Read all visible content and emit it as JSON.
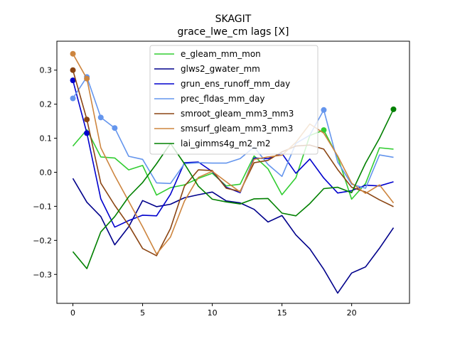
{
  "chart_data": {
    "type": "line",
    "title": "SKAGIT",
    "subtitle": "grace_lwe_cm lags [X]",
    "xlabel": "",
    "ylabel": "",
    "xlim": [
      -1.15,
      24.15
    ],
    "ylim": [
      -0.385,
      0.385
    ],
    "xticks": [
      0,
      5,
      10,
      15,
      20
    ],
    "yticks": [
      -0.3,
      -0.2,
      -0.1,
      0.0,
      0.1,
      0.2,
      0.3
    ],
    "ytick_labels": [
      "−0.3",
      "−0.2",
      "−0.1",
      "0.0",
      "0.1",
      "0.2",
      "0.3"
    ],
    "legend_position": "upper center",
    "x": [
      0,
      1,
      2,
      3,
      4,
      5,
      6,
      7,
      8,
      9,
      10,
      11,
      12,
      13,
      14,
      15,
      16,
      17,
      18,
      19,
      20,
      21,
      22,
      23
    ],
    "series": [
      {
        "name": "e_gleam_mm_mon",
        "color": "#32cd32",
        "values": [
          0.077,
          0.125,
          0.045,
          0.042,
          0.007,
          0.02,
          -0.067,
          -0.045,
          -0.037,
          -0.018,
          -0.003,
          -0.04,
          -0.035,
          0.048,
          0.01,
          -0.066,
          -0.016,
          0.108,
          0.124,
          0.045,
          -0.079,
          -0.033,
          0.072,
          0.068
        ],
        "markers": [
          18
        ]
      },
      {
        "name": "glws2_gwater_mm",
        "color": "#00008b",
        "values": [
          -0.018,
          -0.088,
          -0.13,
          -0.213,
          -0.16,
          -0.083,
          -0.101,
          -0.094,
          -0.075,
          -0.066,
          -0.058,
          -0.084,
          -0.09,
          -0.109,
          -0.146,
          -0.127,
          -0.184,
          -0.225,
          -0.285,
          -0.355,
          -0.296,
          -0.278,
          -0.223,
          -0.163
        ],
        "markers": []
      },
      {
        "name": "grun_ens_runoff_mm_day",
        "color": "#0000cd",
        "values": [
          0.27,
          0.115,
          -0.078,
          -0.161,
          -0.142,
          -0.126,
          -0.128,
          -0.065,
          0.028,
          0.03,
          0.002,
          -0.044,
          -0.06,
          0.042,
          0.04,
          0.055,
          -0.003,
          0.039,
          -0.017,
          -0.061,
          -0.054,
          -0.038,
          -0.04,
          -0.028
        ],
        "markers": [
          0,
          1
        ]
      },
      {
        "name": "prec_fldas_mm_day",
        "color": "#6495ed",
        "values": [
          0.217,
          0.28,
          0.161,
          0.13,
          0.047,
          0.038,
          -0.031,
          -0.033,
          0.025,
          0.028,
          0.027,
          0.027,
          0.04,
          0.074,
          0.023,
          -0.012,
          0.085,
          0.109,
          0.183,
          0.03,
          -0.035,
          -0.047,
          0.051,
          0.044
        ],
        "markers": [
          0,
          1,
          2,
          3,
          18
        ]
      },
      {
        "name": "smroot_gleam_mm3_mm3",
        "color": "#8b4513",
        "values": [
          0.3,
          0.155,
          -0.032,
          -0.097,
          -0.155,
          -0.224,
          -0.245,
          -0.165,
          -0.041,
          0.007,
          0.005,
          -0.047,
          -0.056,
          0.028,
          0.035,
          0.06,
          0.077,
          0.08,
          0.068,
          0.008,
          -0.044,
          -0.058,
          -0.081,
          -0.101
        ],
        "markers": [
          0,
          1
        ]
      },
      {
        "name": "smsurf_gleam_mm3_mm3",
        "color": "#cd853f",
        "values": [
          0.348,
          0.275,
          0.072,
          -0.01,
          -0.085,
          -0.16,
          -0.24,
          -0.19,
          -0.085,
          -0.015,
          0.003,
          -0.028,
          -0.058,
          0.038,
          0.045,
          0.05,
          0.088,
          0.142,
          0.115,
          0.048,
          -0.032,
          -0.062,
          -0.037,
          -0.09
        ],
        "markers": [
          0,
          1
        ]
      },
      {
        "name": "lai_gimms4g_m2_m2",
        "color": "#008000",
        "values": [
          -0.233,
          -0.283,
          -0.175,
          -0.13,
          -0.072,
          -0.03,
          0.025,
          0.085,
          0.025,
          -0.041,
          -0.079,
          -0.087,
          -0.093,
          -0.078,
          -0.077,
          -0.12,
          -0.128,
          -0.092,
          -0.048,
          -0.044,
          -0.06,
          0.027,
          0.1,
          0.185
        ],
        "markers": [
          23
        ]
      }
    ]
  }
}
